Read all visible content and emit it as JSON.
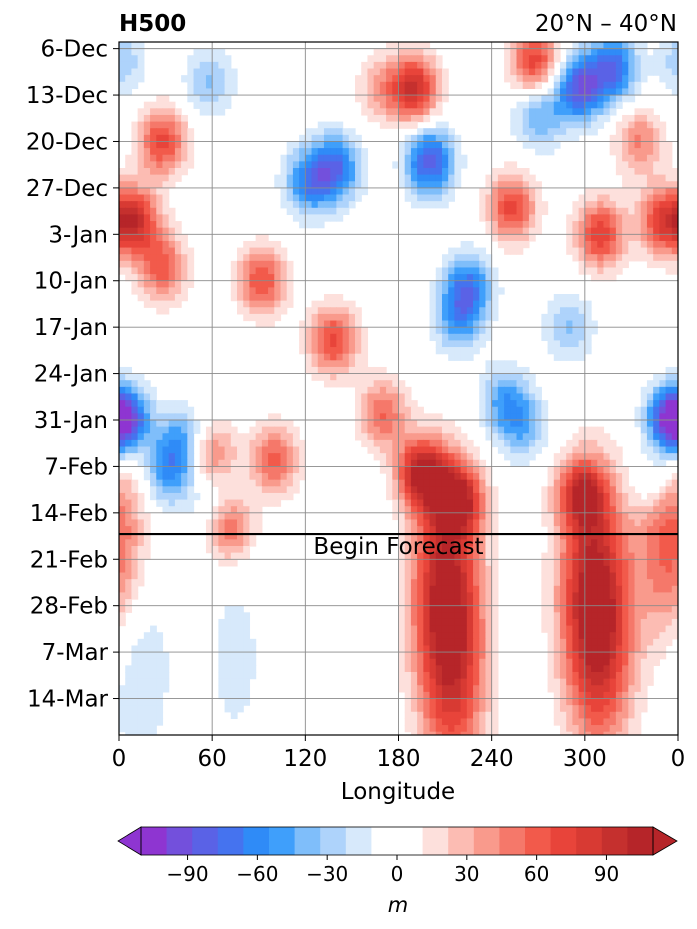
{
  "chart_data": {
    "type": "heatmap",
    "title_left": "H500",
    "title_right": "20°N – 40°N",
    "xlabel": "Longitude",
    "ylabel": "",
    "x_ticks": [
      "0",
      "60",
      "120",
      "180",
      "240",
      "300",
      "0"
    ],
    "x_tick_values": [
      0,
      60,
      120,
      180,
      240,
      300,
      360
    ],
    "xlim": [
      0,
      360
    ],
    "y_ticks": [
      "6-Dec",
      "13-Dec",
      "20-Dec",
      "27-Dec",
      "3-Jan",
      "10-Jan",
      "17-Jan",
      "24-Jan",
      "31-Jan",
      "7-Feb",
      "14-Feb",
      "21-Feb",
      "28-Feb",
      "7-Mar",
      "14-Mar"
    ],
    "y_tick_days": [
      0,
      7,
      14,
      21,
      28,
      35,
      42,
      49,
      56,
      63,
      70,
      77,
      84,
      91,
      98
    ],
    "ylim_days": [
      -1,
      103.5
    ],
    "y_inverted": true,
    "grid": true,
    "forecast_line": {
      "day": 73.2,
      "label": "Begin Forecast"
    },
    "colorbar": {
      "label": "m",
      "ticks": [
        "−90",
        "−60",
        "−30",
        "0",
        "30",
        "60",
        "90"
      ],
      "tick_values": [
        -90,
        -60,
        -30,
        0,
        30,
        60,
        90
      ],
      "range": [
        -110,
        110
      ],
      "extend": "both",
      "colors": [
        "#8e35d1",
        "#7350dc",
        "#5a62e6",
        "#4573ef",
        "#2f8bf7",
        "#3f9ffb",
        "#7fbefa",
        "#aed3fb",
        "#d7e9fb",
        "#ffffff",
        "#ffffff",
        "#fde0dc",
        "#fcbcb3",
        "#f99a8c",
        "#f5786a",
        "#f25a4b",
        "#e8443a",
        "#d83a33",
        "#c5302e",
        "#b62529"
      ],
      "under_color": "#8e35d1",
      "over_color": "#b62529"
    },
    "anomaly_centers": [
      {
        "lon": 4,
        "day": 56,
        "value": -85
      },
      {
        "lon": 2,
        "day": 2,
        "value": -30
      },
      {
        "lon": 40,
        "day": 59,
        "value": -45
      },
      {
        "lon": 32,
        "day": 64,
        "value": -50
      },
      {
        "lon": 58,
        "day": 5,
        "value": -35
      },
      {
        "lon": 62,
        "day": 70,
        "value": -30
      },
      {
        "lon": 140,
        "day": 18,
        "value": -70
      },
      {
        "lon": 122,
        "day": 20,
        "value": -60
      },
      {
        "lon": 200,
        "day": 17,
        "value": -85
      },
      {
        "lon": 225,
        "day": 36,
        "value": -65
      },
      {
        "lon": 218,
        "day": 41,
        "value": -45
      },
      {
        "lon": 296,
        "day": 6,
        "value": -85
      },
      {
        "lon": 318,
        "day": 3,
        "value": -75
      },
      {
        "lon": 270,
        "day": 10,
        "value": -45
      },
      {
        "lon": 248,
        "day": 53,
        "value": -45
      },
      {
        "lon": 260,
        "day": 57,
        "value": -40
      },
      {
        "lon": 290,
        "day": 42,
        "value": -35
      },
      {
        "lon": 354,
        "day": 56,
        "value": -85
      },
      {
        "lon": 345,
        "day": 65,
        "value": -35
      },
      {
        "lon": 12,
        "day": 93,
        "value": -25
      },
      {
        "lon": 75,
        "day": 92,
        "value": -15
      },
      {
        "lon": 10,
        "day": 26,
        "value": 85
      },
      {
        "lon": 28,
        "day": 14,
        "value": 70
      },
      {
        "lon": 28,
        "day": 33,
        "value": 60
      },
      {
        "lon": 92,
        "day": 35,
        "value": 65
      },
      {
        "lon": 138,
        "day": 44,
        "value": 70
      },
      {
        "lon": 190,
        "day": 6,
        "value": 90
      },
      {
        "lon": 195,
        "day": 64,
        "value": 100
      },
      {
        "lon": 218,
        "day": 68,
        "value": 90
      },
      {
        "lon": 210,
        "day": 80,
        "value": 90
      },
      {
        "lon": 215,
        "day": 95,
        "value": 70
      },
      {
        "lon": 253,
        "day": 24,
        "value": 70
      },
      {
        "lon": 268,
        "day": 2,
        "value": 75
      },
      {
        "lon": 310,
        "day": 28,
        "value": 75
      },
      {
        "lon": 305,
        "day": 80,
        "value": 85
      },
      {
        "lon": 298,
        "day": 67,
        "value": 75
      },
      {
        "lon": 310,
        "day": 92,
        "value": 65
      },
      {
        "lon": 350,
        "day": 26,
        "value": 70
      },
      {
        "lon": 70,
        "day": 72,
        "value": 70
      },
      {
        "lon": 60,
        "day": 61,
        "value": 45
      },
      {
        "lon": 100,
        "day": 62,
        "value": 60
      },
      {
        "lon": 170,
        "day": 55,
        "value": 55
      },
      {
        "lon": 168,
        "day": 6,
        "value": 30
      },
      {
        "lon": 335,
        "day": 14,
        "value": 45
      },
      {
        "lon": 355,
        "day": 74,
        "value": 65
      }
    ]
  }
}
